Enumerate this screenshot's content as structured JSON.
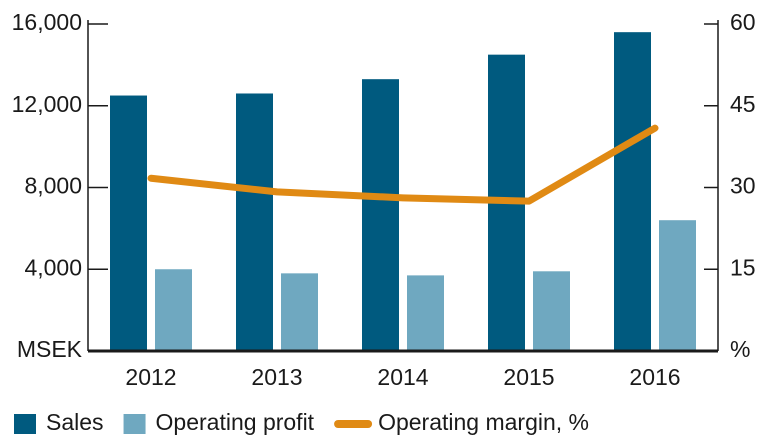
{
  "chart_data": {
    "type": "bar",
    "categories": [
      "2012",
      "2013",
      "2014",
      "2015",
      "2016"
    ],
    "series": [
      {
        "name": "Sales",
        "color": "#005a7f",
        "values": [
          12500,
          12600,
          13300,
          14500,
          15600
        ]
      },
      {
        "name": "Operating profit",
        "color": "#6fa8c0",
        "values": [
          4000,
          3800,
          3700,
          3900,
          6400
        ]
      },
      {
        "name": "Operating margin, %",
        "color": "#e08a14",
        "type": "line",
        "axis": "y2",
        "values": [
          31.7,
          29.2,
          28.1,
          27.5,
          40.9
        ]
      }
    ],
    "ylim": [
      0,
      16000
    ],
    "yticks": [
      {
        "value": 0,
        "label": "MSEK"
      },
      {
        "value": 4000,
        "label": "4,000"
      },
      {
        "value": 8000,
        "label": "8,000"
      },
      {
        "value": 12000,
        "label": "12,000"
      },
      {
        "value": 16000,
        "label": "16,000"
      }
    ],
    "y2lim": [
      0,
      60
    ],
    "y2ticks": [
      {
        "value": 0,
        "label": "%"
      },
      15,
      30,
      45,
      60
    ],
    "legend": "bottom"
  }
}
